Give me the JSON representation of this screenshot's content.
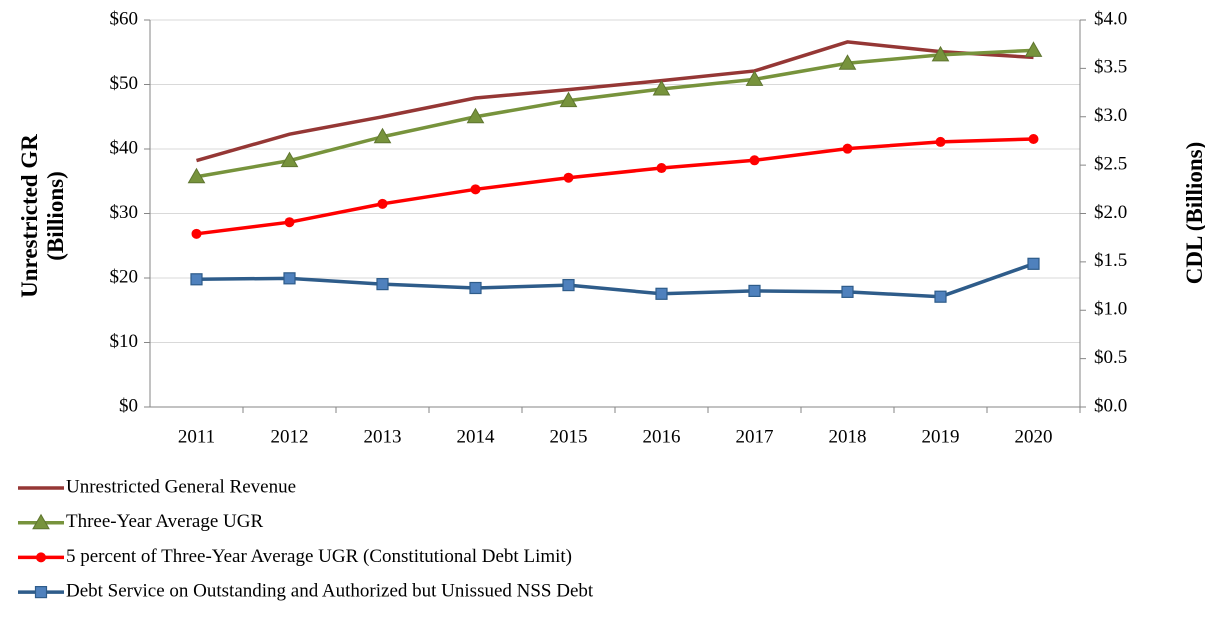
{
  "chart_data": {
    "type": "line",
    "y_label": "Unrestricted GR (Billions)",
    "y2_label": "CDL (Billions)",
    "categories": [
      "2011",
      "2012",
      "2013",
      "2014",
      "2015",
      "2016",
      "2017",
      "2018",
      "2019",
      "2020"
    ],
    "series": [
      {
        "name": "Unrestricted General Revenue",
        "color": "#953735",
        "marker": "none",
        "axis": "y",
        "values": [
          38.2,
          42.3,
          45.0,
          47.9,
          49.2,
          50.6,
          52.1,
          56.6,
          55.1,
          54.2
        ]
      },
      {
        "name": "Three-Year Average UGR",
        "color": "#77933c",
        "marker": "triangle",
        "axis": "y",
        "values": [
          35.7,
          38.2,
          41.9,
          45.0,
          47.5,
          49.3,
          50.8,
          53.3,
          54.6,
          55.3
        ]
      },
      {
        "name": "5 percent of Three-Year Average UGR (Constitutional Debt Limit)",
        "color": "#ff0000",
        "marker": "circle",
        "axis": "y2",
        "values": [
          1.79,
          1.91,
          2.1,
          2.25,
          2.37,
          2.47,
          2.55,
          2.67,
          2.74,
          2.77
        ]
      },
      {
        "name": "Debt Service on Outstanding and Authorized but Unissued NSS Debt",
        "color": "#2e5c8a",
        "marker": "square",
        "axis": "y2",
        "values": [
          1.32,
          1.33,
          1.27,
          1.23,
          1.26,
          1.17,
          1.2,
          1.19,
          1.14,
          1.48
        ]
      }
    ],
    "ylim": [
      0,
      60
    ],
    "yticks": [
      {
        "value": 0,
        "label": "$0"
      },
      {
        "value": 10,
        "label": "$10"
      },
      {
        "value": 20,
        "label": "$20"
      },
      {
        "value": 30,
        "label": "$30"
      },
      {
        "value": 40,
        "label": "$40"
      },
      {
        "value": 50,
        "label": "$50"
      },
      {
        "value": 60,
        "label": "$60"
      }
    ],
    "y2lim": [
      0,
      4
    ],
    "y2ticks": [
      {
        "value": 0,
        "label": "$0.0"
      },
      {
        "value": 0.5,
        "label": "$0.5"
      },
      {
        "value": 1,
        "label": "$1.0"
      },
      {
        "value": 1.5,
        "label": "$1.5"
      },
      {
        "value": 2,
        "label": "$2.0"
      },
      {
        "value": 2.5,
        "label": "$2.5"
      },
      {
        "value": 3,
        "label": "$3.0"
      },
      {
        "value": 3.5,
        "label": "$3.5"
      },
      {
        "value": 4,
        "label": "$4.0"
      }
    ],
    "grid": true,
    "legend": "bottom"
  }
}
